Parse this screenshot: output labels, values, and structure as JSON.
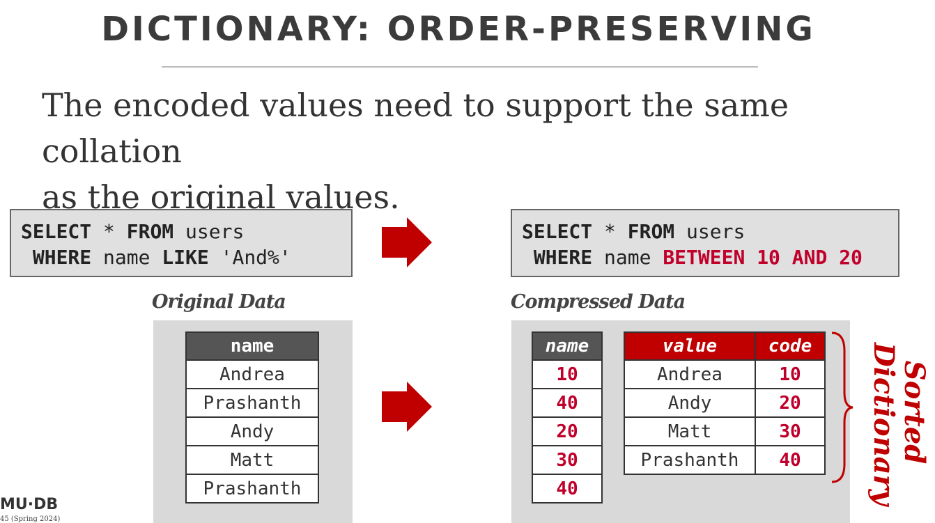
{
  "header": {
    "title": "DICTIONARY: ORDER-PRESERVING"
  },
  "body": {
    "lines": [
      "The encoded values need to support the same collation",
      "as the original values."
    ]
  },
  "query_original": {
    "line1": [
      "SELECT",
      "*",
      "FROM",
      "users"
    ],
    "line2": [
      "WHERE",
      "name",
      "LIKE",
      "'And%'"
    ]
  },
  "query_compressed": {
    "line1": [
      "SELECT",
      "*",
      "FROM",
      "users"
    ],
    "line2": [
      "WHERE",
      "name",
      "BETWEEN",
      "10",
      "AND",
      "20"
    ]
  },
  "original_data": {
    "caption": "Original Data",
    "header": "name",
    "rows": [
      "Andrea",
      "Prashanth",
      "Andy",
      "Matt",
      "Prashanth"
    ]
  },
  "compressed_data": {
    "caption": "Compressed Data",
    "column": {
      "header": "name",
      "rows": [
        10,
        40,
        20,
        30,
        40
      ]
    },
    "dictionary": {
      "headers": [
        "value",
        "code"
      ],
      "rows": [
        [
          "Andrea",
          10
        ],
        [
          "Andy",
          20
        ],
        [
          "Matt",
          30
        ],
        [
          "Prashanth",
          40
        ]
      ]
    }
  },
  "side_label": [
    "Sorted",
    "Dictionary"
  ],
  "footer": {
    "logo": "MU·DB",
    "course": "45 (Spring 2024)"
  }
}
